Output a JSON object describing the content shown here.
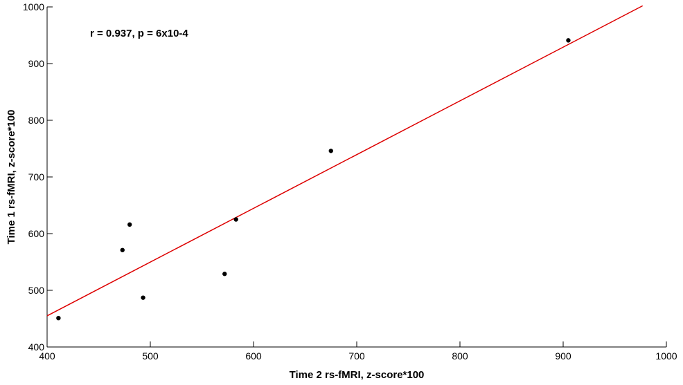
{
  "chart_data": {
    "type": "scatter",
    "annotation": "r = 0.937, p = 6x10-4",
    "xlabel": "Time 2 rs-fMRI, z-score*100",
    "ylabel": "Time 1 rs-fMRI, z-score*100",
    "x": [
      411,
      473,
      480,
      493,
      572,
      583,
      675,
      905
    ],
    "values": [
      451,
      571,
      616,
      487,
      529,
      625,
      746,
      941
    ],
    "color": "#000000",
    "fit_line": {
      "x": [
        400,
        977
      ],
      "values": [
        455,
        1002
      ],
      "color": "#dd0000"
    },
    "xlim": [
      400,
      1000
    ],
    "ylim": [
      400,
      1000
    ],
    "xticks": [
      400,
      500,
      600,
      700,
      800,
      900,
      1000
    ],
    "yticks": [
      400,
      500,
      600,
      700,
      800,
      900,
      1000
    ]
  }
}
